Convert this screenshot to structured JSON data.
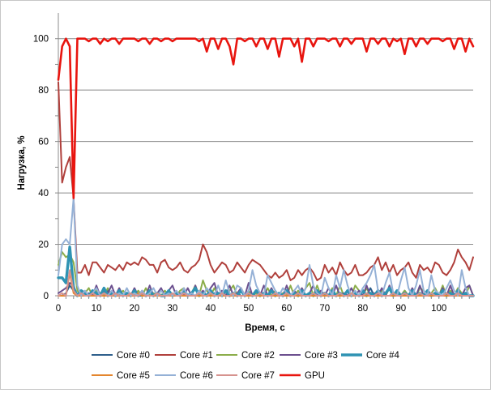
{
  "chart_data": {
    "type": "line",
    "title": "",
    "xlabel": "Время, с",
    "ylabel": "Нагрузка, %",
    "xlim": [
      0,
      109
    ],
    "ylim": [
      0,
      110
    ],
    "x_ticks": [
      0,
      10,
      20,
      30,
      40,
      50,
      60,
      70,
      80,
      90,
      100
    ],
    "y_ticks": [
      0,
      20,
      40,
      60,
      80,
      100
    ],
    "grid": "horizontal",
    "legend_position": "bottom",
    "series": [
      {
        "name": "Core #0",
        "color": "#2e5f8c",
        "stroke_width": 2,
        "values": [
          0,
          0,
          1,
          4,
          2,
          0,
          0,
          1,
          0,
          0,
          0,
          0,
          1,
          2,
          0,
          1,
          0,
          0,
          0,
          0,
          0,
          0,
          0,
          0,
          0,
          1,
          0,
          0,
          0,
          0,
          0,
          0,
          0,
          0,
          0,
          0,
          0,
          0,
          0,
          0,
          0,
          1,
          0,
          0,
          0,
          0,
          0,
          1,
          0,
          0,
          0,
          0,
          0,
          0,
          0,
          0,
          0,
          0,
          0,
          1,
          0,
          0,
          0,
          0,
          0,
          0,
          0,
          0,
          0,
          0,
          0,
          0,
          0,
          0,
          0,
          0,
          0,
          0,
          0,
          0,
          0,
          0,
          3,
          0,
          0,
          0,
          0,
          0,
          1,
          0,
          0,
          2,
          0,
          0,
          0,
          0,
          0,
          0,
          0,
          0,
          0,
          0,
          0,
          0,
          0,
          0,
          0,
          0,
          0,
          0
        ]
      },
      {
        "name": "Core #1",
        "color": "#b0403c",
        "stroke_width": 2,
        "values": [
          83,
          44,
          50,
          54,
          38,
          9,
          9,
          12,
          8,
          13,
          13,
          11,
          9,
          12,
          11,
          10,
          12,
          10,
          13,
          12,
          13,
          12,
          15,
          14,
          12,
          12,
          9,
          13,
          14,
          11,
          10,
          11,
          13,
          10,
          9,
          11,
          12,
          14,
          20,
          17,
          12,
          9,
          11,
          13,
          12,
          9,
          10,
          13,
          11,
          9,
          12,
          14,
          13,
          12,
          10,
          8,
          7,
          9,
          7,
          8,
          10,
          6,
          7,
          10,
          8,
          10,
          11,
          9,
          6,
          7,
          12,
          9,
          11,
          8,
          13,
          10,
          8,
          9,
          12,
          8,
          8,
          9,
          11,
          12,
          15,
          10,
          13,
          9,
          12,
          8,
          10,
          11,
          13,
          9,
          7,
          12,
          10,
          11,
          9,
          13,
          12,
          9,
          8,
          10,
          13,
          18,
          15,
          13,
          10,
          15
        ]
      },
      {
        "name": "Core #2",
        "color": "#8bad4a",
        "stroke_width": 2,
        "values": [
          12,
          17,
          15,
          16,
          13,
          2,
          0,
          1,
          3,
          0,
          2,
          1,
          0,
          3,
          0,
          1,
          0,
          2,
          0,
          1,
          0,
          2,
          0,
          3,
          0,
          1,
          0,
          0,
          2,
          0,
          1,
          0,
          2,
          3,
          0,
          1,
          4,
          0,
          6,
          2,
          0,
          3,
          0,
          1,
          0,
          2,
          4,
          0,
          3,
          0,
          2,
          0,
          1,
          0,
          0,
          3,
          0,
          2,
          0,
          1,
          0,
          4,
          0,
          2,
          0,
          3,
          5,
          0,
          4,
          0,
          1,
          0,
          3,
          0,
          4,
          0,
          2,
          0,
          4,
          2,
          0,
          3,
          0,
          1,
          0,
          2,
          0,
          3,
          0,
          1,
          0,
          2,
          0,
          1,
          0,
          3,
          2,
          0,
          1,
          3,
          0,
          4,
          0,
          2,
          0,
          3,
          1,
          0,
          4,
          0
        ]
      },
      {
        "name": "Core #3",
        "color": "#6b4f8e",
        "stroke_width": 2,
        "values": [
          1,
          2,
          3,
          5,
          4,
          0,
          2,
          0,
          1,
          0,
          4,
          0,
          2,
          1,
          4,
          0,
          3,
          0,
          1,
          0,
          3,
          0,
          2,
          0,
          4,
          0,
          1,
          3,
          0,
          2,
          4,
          0,
          1,
          0,
          3,
          0,
          4,
          0,
          2,
          0,
          3,
          5,
          0,
          2,
          0,
          4,
          0,
          1,
          3,
          0,
          5,
          0,
          2,
          0,
          4,
          0,
          3,
          0,
          1,
          0,
          4,
          0,
          2,
          0,
          3,
          0,
          1,
          4,
          0,
          2,
          0,
          3,
          0,
          4,
          0,
          1,
          0,
          3,
          0,
          2,
          0,
          4,
          0,
          1,
          0,
          3,
          0,
          4,
          0,
          2,
          0,
          1,
          0,
          3,
          0,
          4,
          0,
          2,
          0,
          1,
          0,
          3,
          0,
          4,
          0,
          2,
          0,
          3,
          4,
          0
        ]
      },
      {
        "name": "Core #4",
        "color": "#2f93b3",
        "stroke_width": 3.4,
        "values": [
          7,
          7,
          5,
          19,
          3,
          0,
          2,
          1,
          0,
          2,
          1,
          0,
          3,
          0,
          1,
          0,
          2,
          0,
          1,
          0,
          2,
          0,
          1,
          0,
          2,
          0,
          1,
          0,
          0,
          2,
          0,
          1,
          0,
          2,
          0,
          1,
          3,
          0,
          1,
          0,
          2,
          0,
          1,
          0,
          2,
          0,
          1,
          0,
          2,
          0,
          1,
          0,
          2,
          0,
          1,
          0,
          2,
          0,
          1,
          0,
          2,
          0,
          1,
          0,
          2,
          0,
          1,
          0,
          2,
          0,
          1,
          0,
          2,
          0,
          1,
          0,
          2,
          0,
          1,
          0,
          2,
          0,
          1,
          0,
          2,
          0,
          1,
          3,
          0,
          2,
          0,
          1,
          0,
          2,
          0,
          1,
          0,
          2,
          0,
          1,
          0,
          2,
          0,
          1,
          0,
          2,
          0,
          1,
          0,
          0
        ]
      },
      {
        "name": "Core #5",
        "color": "#e4862e",
        "stroke_width": 2,
        "values": [
          0,
          0,
          0,
          9,
          1,
          0,
          0,
          0,
          0,
          0,
          0,
          0,
          0,
          0,
          0,
          0,
          0,
          0,
          0,
          0,
          0,
          1,
          0,
          0,
          0,
          0,
          0,
          0,
          0,
          0,
          0,
          0,
          0,
          0,
          0,
          0,
          0,
          0,
          0,
          0,
          0,
          0,
          0,
          0,
          0,
          0,
          0,
          0,
          0,
          0,
          0,
          0,
          0,
          0,
          0,
          0,
          0,
          0,
          0,
          0,
          0,
          0,
          0,
          0,
          0,
          0,
          0,
          0,
          0,
          0,
          0,
          0,
          0,
          0,
          0,
          0,
          0,
          0,
          0,
          0,
          0,
          0,
          0,
          0,
          0,
          0,
          0,
          0,
          0,
          0,
          0,
          0,
          0,
          0,
          0,
          0,
          0,
          0,
          0,
          0,
          0,
          0,
          0,
          0,
          0,
          0,
          0,
          0,
          0,
          0
        ]
      },
      {
        "name": "Core #6",
        "color": "#95b1d6",
        "stroke_width": 2,
        "values": [
          8,
          20,
          22,
          20,
          38,
          4,
          0,
          2,
          0,
          1,
          3,
          0,
          1,
          0,
          2,
          0,
          1,
          0,
          3,
          0,
          1,
          0,
          2,
          0,
          1,
          3,
          0,
          2,
          0,
          1,
          0,
          2,
          0,
          3,
          0,
          1,
          0,
          2,
          0,
          3,
          1,
          0,
          4,
          0,
          6,
          1,
          0,
          4,
          3,
          0,
          2,
          10,
          4,
          1,
          0,
          8,
          5,
          2,
          0,
          3,
          1,
          0,
          2,
          4,
          0,
          3,
          12,
          4,
          1,
          0,
          7,
          3,
          0,
          8,
          3,
          10,
          4,
          0,
          2,
          0,
          3,
          5,
          8,
          12,
          2,
          0,
          5,
          9,
          1,
          0,
          6,
          11,
          3,
          0,
          4,
          10,
          2,
          0,
          8,
          2,
          1,
          0,
          3,
          6,
          2,
          0,
          10,
          3,
          0,
          0
        ]
      },
      {
        "name": "Core #7",
        "color": "#d6938f",
        "stroke_width": 2,
        "values": [
          0,
          1,
          0,
          10,
          2,
          0,
          1,
          0,
          0,
          1,
          0,
          0,
          1,
          0,
          0,
          1,
          0,
          0,
          0,
          1,
          0,
          0,
          1,
          0,
          0,
          0,
          1,
          0,
          0,
          0,
          1,
          0,
          0,
          1,
          0,
          0,
          0,
          1,
          0,
          0,
          1,
          0,
          0,
          1,
          0,
          0,
          1,
          0,
          0,
          0,
          1,
          0,
          0,
          1,
          0,
          0,
          0,
          1,
          0,
          0,
          1,
          0,
          0,
          1,
          0,
          0,
          0,
          1,
          0,
          0,
          1,
          0,
          0,
          0,
          1,
          0,
          0,
          1,
          0,
          0,
          0,
          1,
          0,
          0,
          1,
          0,
          0,
          0,
          1,
          0,
          0,
          1,
          0,
          0,
          0,
          1,
          0,
          0,
          1,
          0,
          0,
          0,
          1,
          0,
          0,
          1,
          0,
          0,
          0,
          0
        ]
      },
      {
        "name": "GPU",
        "color": "#e8150f",
        "stroke_width": 2.6,
        "values": [
          84,
          97,
          100,
          97,
          38,
          100,
          100,
          100,
          99,
          100,
          100,
          98,
          100,
          99,
          100,
          100,
          98,
          100,
          100,
          100,
          100,
          99,
          100,
          100,
          98,
          100,
          100,
          99,
          100,
          100,
          99,
          100,
          100,
          100,
          100,
          100,
          100,
          99,
          100,
          95,
          100,
          100,
          96,
          100,
          100,
          97,
          90,
          100,
          100,
          99,
          100,
          100,
          97,
          100,
          100,
          96,
          100,
          100,
          93,
          100,
          100,
          100,
          97,
          100,
          91,
          100,
          100,
          97,
          100,
          100,
          100,
          99,
          100,
          100,
          97,
          100,
          100,
          98,
          100,
          100,
          100,
          95,
          100,
          100,
          98,
          100,
          100,
          97,
          100,
          99,
          100,
          94,
          100,
          100,
          97,
          100,
          100,
          98,
          100,
          100,
          100,
          99,
          100,
          100,
          96,
          100,
          100,
          95,
          100,
          97
        ]
      }
    ]
  }
}
